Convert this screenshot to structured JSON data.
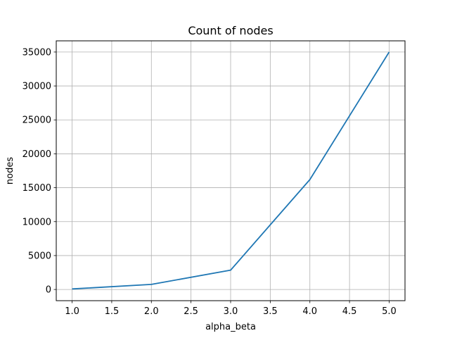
{
  "chart_data": {
    "type": "line",
    "title": "Count of nodes",
    "xlabel": "alpha_beta",
    "ylabel": "nodes",
    "xlim": [
      0.8,
      5.2
    ],
    "ylim": [
      -1650,
      36650
    ],
    "grid": true,
    "xticks": [
      1.0,
      1.5,
      2.0,
      2.5,
      3.0,
      3.5,
      4.0,
      4.5,
      5.0
    ],
    "xtick_labels": [
      "1.0",
      "1.5",
      "2.0",
      "2.5",
      "3.0",
      "3.5",
      "4.0",
      "4.5",
      "5.0"
    ],
    "yticks": [
      0,
      5000,
      10000,
      15000,
      20000,
      25000,
      30000,
      35000
    ],
    "ytick_labels": [
      "0",
      "5000",
      "10000",
      "15000",
      "20000",
      "25000",
      "30000",
      "35000"
    ],
    "series": [
      {
        "color": "#1f77b4",
        "x": [
          1,
          2,
          3,
          4,
          5
        ],
        "y": [
          80,
          750,
          2850,
          16200,
          35000
        ]
      }
    ]
  }
}
